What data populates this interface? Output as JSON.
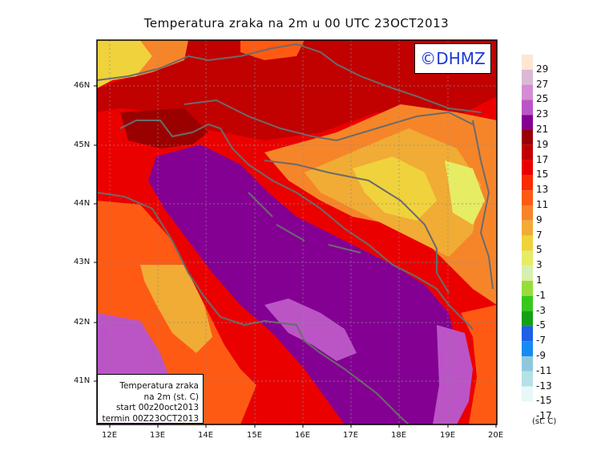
{
  "title": "Temperatura zraka na 2m u 00 UTC 23OCT2013",
  "copyright": "©DHMZ",
  "info_box": {
    "line1": "Temperatura zraka",
    "line2": "na 2m (st. C)",
    "line3": "start 00z20oct2013",
    "line4": "termin 00Z23OCT2013"
  },
  "legend": {
    "unit": "(st. C)",
    "labels": [
      "29",
      "27",
      "25",
      "23",
      "21",
      "19",
      "17",
      "15",
      "13",
      "11",
      "9",
      "7",
      "5",
      "3",
      "1",
      "-1",
      "-3",
      "-5",
      "-7",
      "-9",
      "-11",
      "-13",
      "-15",
      "-17"
    ],
    "colors": [
      "#fde7d3",
      "#dcb8d6",
      "#d38ed3",
      "#bb55c6",
      "#830093",
      "#9b0000",
      "#c10000",
      "#eb0000",
      "#fa2b00",
      "#ff5a14",
      "#f6852a",
      "#f0ac35",
      "#f0d23c",
      "#e6ec64",
      "#d7f0ad",
      "#98dc3a",
      "#37c81e",
      "#14a014",
      "#1f5ee6",
      "#148cf0",
      "#8fc8dc",
      "#b4e1e6",
      "#e6f8f8",
      "#ffffff"
    ]
  },
  "x_axis": {
    "ticks": [
      "12E",
      "13E",
      "14E",
      "15E",
      "16E",
      "17E",
      "18E",
      "19E",
      "20E"
    ]
  },
  "y_axis": {
    "ticks": [
      "41N",
      "42N",
      "43N",
      "44N",
      "45N",
      "46N"
    ]
  }
}
